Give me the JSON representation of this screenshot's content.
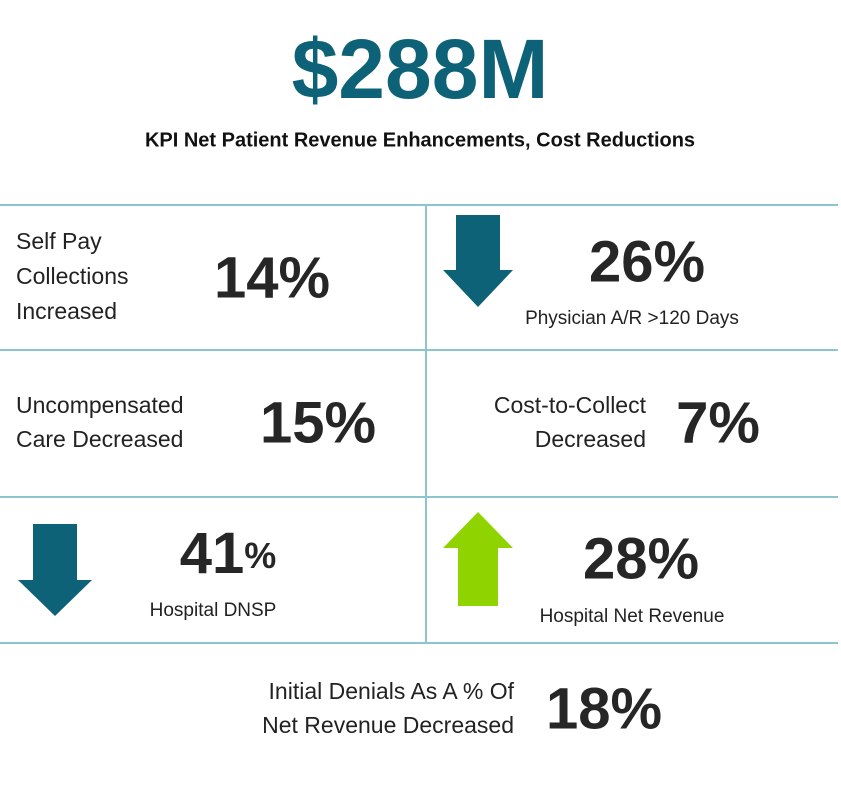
{
  "header": {
    "headline": "$288M",
    "subtitle": "KPI Net Patient Revenue Enhancements, Cost Reductions"
  },
  "kpis": [
    {
      "label": [
        "Self Pay",
        "Collections",
        "Increased"
      ],
      "value": "14%"
    },
    {
      "value": "26%",
      "label": [
        "Physician A/R >120 Days"
      ]
    },
    {
      "label": [
        "Uncompensated",
        "Care Decreased"
      ],
      "value": "15%"
    },
    {
      "label": [
        "Cost-to-Collect",
        "Decreased"
      ],
      "value": "7%"
    },
    {
      "value": "41",
      "unit": "%",
      "label": [
        "Hospital DNSP"
      ]
    },
    {
      "value": "28%",
      "label": [
        "Hospital Net Revenue"
      ]
    },
    {
      "label": [
        "Initial Denials As A % Of",
        "Net Revenue Decreased"
      ],
      "value": "18%"
    }
  ]
}
